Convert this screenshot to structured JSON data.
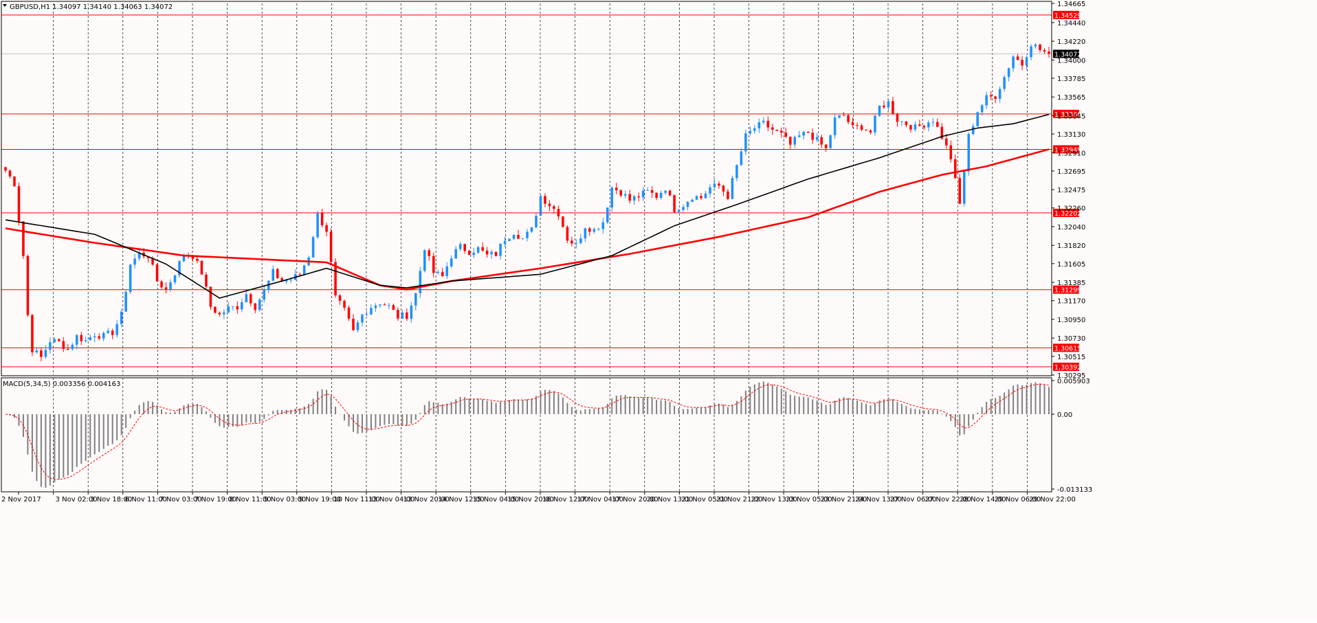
{
  "header": {
    "symbol_line": "GBPUSD,H1  1.34097 1.34140 1.34063 1.34072"
  },
  "colors": {
    "background": "#fffafa",
    "bull": "#1e90ff",
    "bear": "#ff0000",
    "level_line": "#ff0000",
    "sma_slow": "#ff0000",
    "sma_fast": "#000000",
    "macd_hist": "#7f7f7f",
    "macd_signal": "#ff0000",
    "grid": "#000000"
  },
  "chart_data": {
    "type": "candlestick",
    "symbol": "GBPUSD",
    "timeframe": "H1",
    "ohlc_header": {
      "open": 1.34097,
      "high": 1.3414,
      "low": 1.34063,
      "close": 1.34072
    },
    "ylim": [
      1.30295,
      1.34665
    ],
    "price_ticks": [
      "1.34665",
      "1.34440",
      "1.34220",
      "1.34000",
      "1.33785",
      "1.33565",
      "1.33345",
      "1.33130",
      "1.32910",
      "1.32695",
      "1.32475",
      "1.32260",
      "1.32040",
      "1.31820",
      "1.31605",
      "1.31385",
      "1.31170",
      "1.30950",
      "1.30730",
      "1.30515",
      "1.30295"
    ],
    "current_price": "1.34072",
    "horizontal_levels": [
      "1.34529",
      "1.33366",
      "1.32949",
      "1.32202",
      "1.31299",
      "1.30615",
      "1.30392"
    ],
    "x_labels": [
      "2 Nov 2017",
      "3 Nov 02:00",
      "3 Nov 18:00",
      "6 Nov 11:00",
      "7 Nov 03:00",
      "7 Nov 19:00",
      "8 Nov 11:00",
      "9 Nov 03:00",
      "9 Nov 19:00",
      "10 Nov 11:00",
      "13 Nov 04:00",
      "13 Nov 20:00",
      "14 Nov 12:00",
      "15 Nov 04:00",
      "15 Nov 20:00",
      "16 Nov 12:00",
      "17 Nov 04:00",
      "17 Nov 20:00",
      "20 Nov 13:00",
      "21 Nov 05:00",
      "21 Nov 21:00",
      "22 Nov 13:00",
      "23 Nov 05:00",
      "23 Nov 21:00",
      "24 Nov 13:00",
      "27 Nov 06:00",
      "27 Nov 22:00",
      "28 Nov 14:00",
      "29 Nov 06:00",
      "29 Nov 22:00"
    ],
    "close_path": [
      [
        0,
        1.327
      ],
      [
        2,
        1.3255
      ],
      [
        4,
        1.317
      ],
      [
        5,
        1.31
      ],
      [
        6,
        1.306
      ],
      [
        8,
        1.305
      ],
      [
        10,
        1.307
      ],
      [
        12,
        1.3068
      ],
      [
        14,
        1.306
      ],
      [
        16,
        1.3075
      ],
      [
        18,
        1.307
      ],
      [
        20,
        1.3078
      ],
      [
        22,
        1.3075
      ],
      [
        24,
        1.308
      ],
      [
        26,
        1.31
      ],
      [
        28,
        1.316
      ],
      [
        30,
        1.3172
      ],
      [
        32,
        1.317
      ],
      [
        34,
        1.314
      ],
      [
        36,
        1.313
      ],
      [
        38,
        1.315
      ],
      [
        40,
        1.3172
      ],
      [
        42,
        1.317
      ],
      [
        44,
        1.315
      ],
      [
        46,
        1.311
      ],
      [
        48,
        1.31
      ],
      [
        50,
        1.3108
      ],
      [
        52,
        1.311
      ],
      [
        54,
        1.3125
      ],
      [
        56,
        1.311
      ],
      [
        58,
        1.3128
      ],
      [
        60,
        1.315
      ],
      [
        62,
        1.314
      ],
      [
        64,
        1.3142
      ],
      [
        66,
        1.3148
      ],
      [
        68,
        1.317
      ],
      [
        70,
        1.3218
      ],
      [
        72,
        1.32
      ],
      [
        74,
        1.312
      ],
      [
        76,
        1.3105
      ],
      [
        78,
        1.308
      ],
      [
        80,
        1.31
      ],
      [
        82,
        1.311
      ],
      [
        84,
        1.3115
      ],
      [
        86,
        1.311
      ],
      [
        88,
        1.3098
      ],
      [
        90,
        1.31
      ],
      [
        92,
        1.3125
      ],
      [
        94,
        1.318
      ],
      [
        96,
        1.315
      ],
      [
        98,
        1.3145
      ],
      [
        100,
        1.317
      ],
      [
        102,
        1.318
      ],
      [
        104,
        1.3175
      ],
      [
        106,
        1.3178
      ],
      [
        108,
        1.317
      ],
      [
        110,
        1.3172
      ],
      [
        112,
        1.319
      ],
      [
        114,
        1.3198
      ],
      [
        116,
        1.319
      ],
      [
        118,
        1.32
      ],
      [
        120,
        1.324
      ],
      [
        122,
        1.323
      ],
      [
        124,
        1.322
      ],
      [
        126,
        1.319
      ],
      [
        128,
        1.3182
      ],
      [
        130,
        1.3205
      ],
      [
        132,
        1.32
      ],
      [
        134,
        1.321
      ],
      [
        136,
        1.325
      ],
      [
        138,
        1.3245
      ],
      [
        140,
        1.3235
      ],
      [
        142,
        1.324
      ],
      [
        144,
        1.3245
      ],
      [
        146,
        1.324
      ],
      [
        148,
        1.325
      ],
      [
        150,
        1.3225
      ],
      [
        152,
        1.323
      ],
      [
        154,
        1.324
      ],
      [
        156,
        1.3238
      ],
      [
        158,
        1.325
      ],
      [
        160,
        1.3252
      ],
      [
        162,
        1.324
      ],
      [
        164,
        1.3275
      ],
      [
        166,
        1.331
      ],
      [
        168,
        1.332
      ],
      [
        170,
        1.3325
      ],
      [
        172,
        1.3318
      ],
      [
        174,
        1.3312
      ],
      [
        176,
        1.33
      ],
      [
        178,
        1.331
      ],
      [
        180,
        1.3315
      ],
      [
        182,
        1.3305
      ],
      [
        184,
        1.3295
      ],
      [
        186,
        1.333
      ],
      [
        188,
        1.3335
      ],
      [
        190,
        1.332
      ],
      [
        192,
        1.3322
      ],
      [
        194,
        1.3315
      ],
      [
        196,
        1.3345
      ],
      [
        198,
        1.335
      ],
      [
        200,
        1.333
      ],
      [
        202,
        1.3325
      ],
      [
        204,
        1.332
      ],
      [
        206,
        1.3325
      ],
      [
        208,
        1.333
      ],
      [
        210,
        1.331
      ],
      [
        212,
        1.3285
      ],
      [
        214,
        1.323
      ],
      [
        216,
        1.331
      ],
      [
        218,
        1.334
      ],
      [
        220,
        1.3355
      ],
      [
        222,
        1.3358
      ],
      [
        224,
        1.338
      ],
      [
        226,
        1.3405
      ],
      [
        228,
        1.3395
      ],
      [
        230,
        1.342
      ],
      [
        232,
        1.3412
      ],
      [
        234,
        1.3407
      ]
    ],
    "sma_fast": [
      [
        0,
        1.3212
      ],
      [
        20,
        1.3195
      ],
      [
        36,
        1.316
      ],
      [
        48,
        1.312
      ],
      [
        62,
        1.314
      ],
      [
        72,
        1.3155
      ],
      [
        84,
        1.3135
      ],
      [
        90,
        1.3132
      ],
      [
        100,
        1.314
      ],
      [
        120,
        1.3148
      ],
      [
        136,
        1.317
      ],
      [
        150,
        1.3205
      ],
      [
        164,
        1.323
      ],
      [
        180,
        1.326
      ],
      [
        196,
        1.3285
      ],
      [
        210,
        1.331
      ],
      [
        218,
        1.332
      ],
      [
        226,
        1.3325
      ],
      [
        234,
        1.3336
      ]
    ],
    "sma_slow": [
      [
        0,
        1.3202
      ],
      [
        20,
        1.3185
      ],
      [
        40,
        1.317
      ],
      [
        60,
        1.3165
      ],
      [
        72,
        1.3162
      ],
      [
        84,
        1.3135
      ],
      [
        90,
        1.313
      ],
      [
        100,
        1.314
      ],
      [
        120,
        1.3155
      ],
      [
        140,
        1.3172
      ],
      [
        160,
        1.3192
      ],
      [
        180,
        1.3215
      ],
      [
        196,
        1.3245
      ],
      [
        210,
        1.3265
      ],
      [
        220,
        1.3275
      ],
      [
        234,
        1.3295
      ]
    ],
    "macd": {
      "label": "MACD(5,34,5) 0.003356 0.004163",
      "ylim": [
        -0.013133,
        0.005903
      ],
      "ticks": [
        "0.005903",
        "0.00",
        "-0.013133"
      ]
    }
  }
}
